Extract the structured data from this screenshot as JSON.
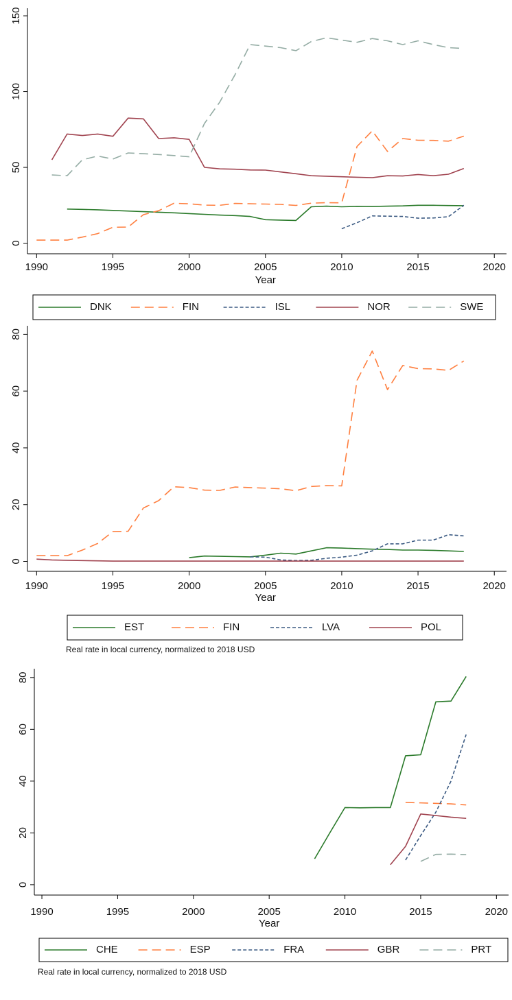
{
  "chart_data": [
    {
      "type": "line",
      "x_label": "Year",
      "x": [
        1990,
        1991,
        1992,
        1993,
        1994,
        1995,
        1996,
        1997,
        1998,
        1999,
        2000,
        2001,
        2002,
        2003,
        2004,
        2005,
        2006,
        2007,
        2008,
        2009,
        2010,
        2011,
        2012,
        2013,
        2014,
        2015,
        2016,
        2017,
        2018
      ],
      "xlim": [
        1989.4,
        2020.8
      ],
      "xticks": [
        1990,
        1995,
        2000,
        2005,
        2010,
        2015,
        2020
      ],
      "ylim": [
        -7,
        155
      ],
      "yticks": [
        0,
        50,
        100,
        150
      ],
      "series": [
        {
          "name": "DNK",
          "color": "#2a7a2a",
          "line_style": "solid",
          "values": [
            null,
            null,
            22.5,
            22.3,
            22,
            21.6,
            21.2,
            20.8,
            20.4,
            20,
            19.5,
            19,
            18.5,
            18.2,
            17.6,
            15.5,
            15.2,
            15,
            24,
            24.4,
            24,
            24.3,
            24.2,
            24.4,
            24.6,
            25,
            25,
            24.8,
            24.7
          ]
        },
        {
          "name": "FIN",
          "color": "#ff7f3f",
          "line_style": "longdash",
          "values": [
            2,
            2,
            2,
            4,
            6.3,
            10.5,
            10.6,
            18.8,
            21.4,
            26.3,
            26,
            25.1,
            25,
            26.2,
            26,
            25.8,
            25.6,
            24.9,
            26.4,
            26.7,
            26.6,
            63.8,
            74.1,
            60.5,
            69,
            67.9,
            67.8,
            67.3,
            70.6
          ]
        },
        {
          "name": "ISL",
          "color": "#3b5a82",
          "line_style": "dash",
          "values": [
            null,
            null,
            null,
            null,
            null,
            null,
            null,
            null,
            null,
            null,
            null,
            null,
            null,
            null,
            null,
            null,
            null,
            null,
            null,
            null,
            9.5,
            13.5,
            18,
            17.8,
            17.6,
            16.5,
            16.6,
            17.5,
            25
          ]
        },
        {
          "name": "NOR",
          "color": "#a0434f",
          "line_style": "solid",
          "values": [
            null,
            55,
            72,
            71,
            72,
            70.5,
            82.5,
            82,
            69,
            69.5,
            68.5,
            50,
            49,
            48.8,
            48.3,
            48.2,
            47,
            45.8,
            44.5,
            44.2,
            43.8,
            43.5,
            43.2,
            44.5,
            44.3,
            45.3,
            44.5,
            45.5,
            49.3
          ]
        },
        {
          "name": "SWE",
          "color": "#94aca4",
          "line_style": "longdash",
          "values": [
            null,
            45,
            44.5,
            55,
            57.5,
            55.5,
            59.5,
            59,
            58.5,
            57.8,
            57,
            79,
            93,
            111,
            131,
            130,
            129,
            127,
            133,
            135.5,
            134,
            132.5,
            135,
            133.5,
            131,
            133.5,
            131,
            129,
            128.5
          ]
        }
      ]
    },
    {
      "type": "line",
      "x_label": "Year",
      "note": "Real rate in local currency, normalized to 2018 USD",
      "x": [
        1990,
        1991,
        1992,
        1993,
        1994,
        1995,
        1996,
        1997,
        1998,
        1999,
        2000,
        2001,
        2002,
        2003,
        2004,
        2005,
        2006,
        2007,
        2008,
        2009,
        2010,
        2011,
        2012,
        2013,
        2014,
        2015,
        2016,
        2017,
        2018
      ],
      "xlim": [
        1989.4,
        2020.8
      ],
      "xticks": [
        1990,
        1995,
        2000,
        2005,
        2010,
        2015,
        2020
      ],
      "ylim": [
        -3.5,
        83
      ],
      "yticks": [
        0,
        20,
        40,
        60,
        80
      ],
      "series": [
        {
          "name": "EST",
          "color": "#2a7a2a",
          "line_style": "solid",
          "values": [
            null,
            null,
            null,
            null,
            null,
            null,
            null,
            null,
            null,
            null,
            1.3,
            1.9,
            1.8,
            1.7,
            1.6,
            2.2,
            2.9,
            2.6,
            3.7,
            4.8,
            4.7,
            4.5,
            4.3,
            4.2,
            4,
            4,
            3.9,
            3.7,
            3.5
          ]
        },
        {
          "name": "FIN",
          "color": "#ff7f3f",
          "line_style": "longdash",
          "values": [
            2,
            2,
            2,
            4,
            6.3,
            10.5,
            10.6,
            18.8,
            21.4,
            26.3,
            26,
            25.1,
            25,
            26.2,
            26,
            25.8,
            25.6,
            24.9,
            26.4,
            26.7,
            26.6,
            63.8,
            74.1,
            60.5,
            69,
            67.9,
            67.8,
            67.3,
            70.6
          ]
        },
        {
          "name": "LVA",
          "color": "#3b5a82",
          "line_style": "dash",
          "values": [
            null,
            null,
            null,
            null,
            null,
            null,
            null,
            null,
            null,
            null,
            null,
            null,
            null,
            null,
            1.6,
            1.5,
            0.5,
            0.3,
            0.4,
            1.1,
            1.5,
            2.2,
            3.7,
            6.2,
            6.2,
            7.5,
            7.5,
            9.4,
            9
          ]
        },
        {
          "name": "POL",
          "color": "#a0434f",
          "line_style": "solid",
          "values": [
            0.8,
            0.5,
            0.4,
            0.3,
            0.2,
            0.1,
            0.1,
            0.1,
            0.1,
            0.1,
            0.1,
            0.1,
            0.1,
            0.1,
            0.1,
            0.1,
            0.1,
            0.1,
            0.1,
            0.1,
            0.1,
            0.1,
            0.1,
            0.1,
            0.1,
            0.1,
            0.1,
            0.1,
            0.1
          ]
        }
      ]
    },
    {
      "type": "line",
      "x_label": "Year",
      "note": "Real rate in local currency, normalized to 2018 USD",
      "x": [
        2008,
        2009,
        2010,
        2011,
        2012,
        2013,
        2014,
        2015,
        2016,
        2017,
        2018
      ],
      "xlim": [
        1989.5,
        2020.8
      ],
      "xticks": [
        1990,
        1995,
        2000,
        2005,
        2010,
        2015,
        2020
      ],
      "ylim": [
        -4,
        83.4
      ],
      "yticks": [
        0,
        20,
        40,
        60,
        80
      ],
      "series": [
        {
          "name": "CHE",
          "color": "#2a7a2a",
          "line_style": "solid",
          "values": [
            10,
            20,
            29.8,
            29.7,
            29.8,
            29.8,
            49.8,
            50.2,
            70.6,
            70.9,
            80.4
          ]
        },
        {
          "name": "ESP",
          "color": "#ff7f3f",
          "line_style": "longdash",
          "values": [
            null,
            null,
            null,
            null,
            null,
            null,
            31.8,
            31.6,
            31.4,
            31.2,
            30.8
          ]
        },
        {
          "name": "FRA",
          "color": "#3b5a82",
          "line_style": "dash",
          "values": [
            null,
            null,
            null,
            null,
            null,
            null,
            9.5,
            19,
            28,
            40,
            58
          ]
        },
        {
          "name": "GBR",
          "color": "#a0434f",
          "line_style": "solid",
          "values": [
            null,
            null,
            null,
            null,
            null,
            7.7,
            14.8,
            27.3,
            26.7,
            26.1,
            25.6
          ]
        },
        {
          "name": "PRT",
          "color": "#94aca4",
          "line_style": "longdash",
          "values": [
            null,
            null,
            null,
            null,
            null,
            null,
            null,
            9,
            11.7,
            11.8,
            11.6
          ]
        }
      ]
    }
  ]
}
